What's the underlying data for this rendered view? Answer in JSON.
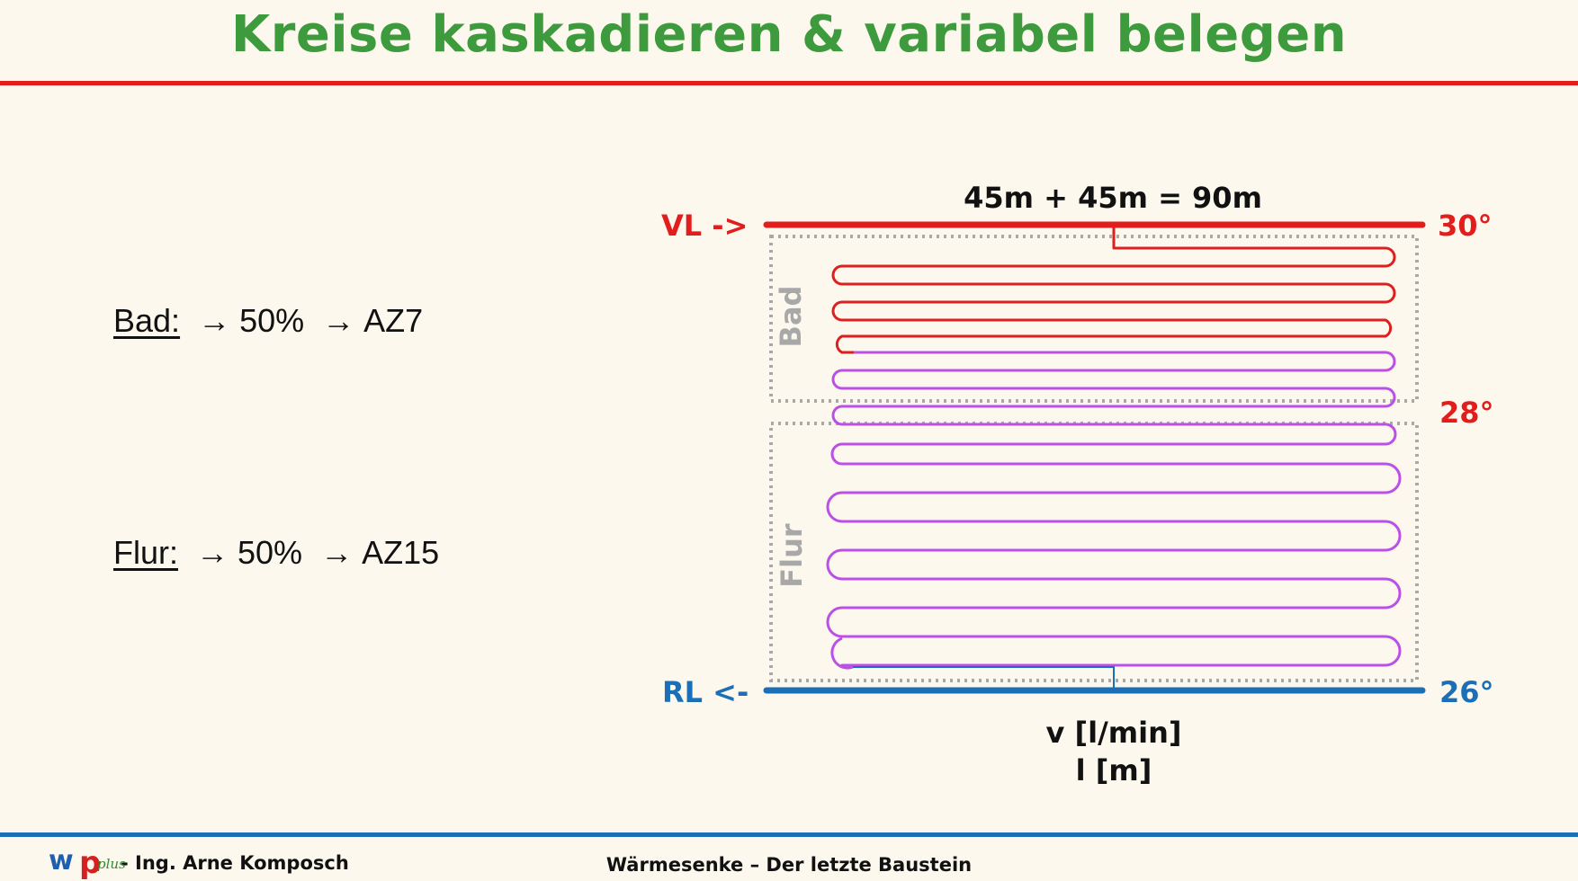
{
  "header": {
    "title": "Kreise kaskadieren & variabel belegen"
  },
  "rooms": [
    {
      "name": "Bad:",
      "share": "50%",
      "setting": "AZ7"
    },
    {
      "name": "Flur:",
      "share": "50%",
      "setting": "AZ15"
    }
  ],
  "arrow_glyph": "→",
  "diagram": {
    "length_label": "45m + 45m = 90m",
    "supply_label": "VL ->",
    "return_label": "RL <-",
    "temp_supply": "30°",
    "temp_mid": "28°",
    "temp_return": "26°",
    "zone_top": "Bad",
    "zone_bottom": "Flur",
    "flow_label": "v [l/min]",
    "length_unit_label": "l [m]"
  },
  "footer": {
    "logo_w": "w",
    "logo_p": "p",
    "logo_plus": "plus",
    "author": "- Ing. Arne Komposch",
    "subtitle": "Wärmesenke – Der letzte Baustein"
  },
  "colors": {
    "title": "#3d9a3d",
    "red": "#e31c1c",
    "blue": "#1a6fb7",
    "loop_hot": "#dd1f1f",
    "loop_cool": "#bb4fe6",
    "zone_border": "#a8a8a8",
    "logo_green": "#2f8b2f",
    "logo_blue": "#1f5fb0",
    "logo_red": "#d42020"
  }
}
